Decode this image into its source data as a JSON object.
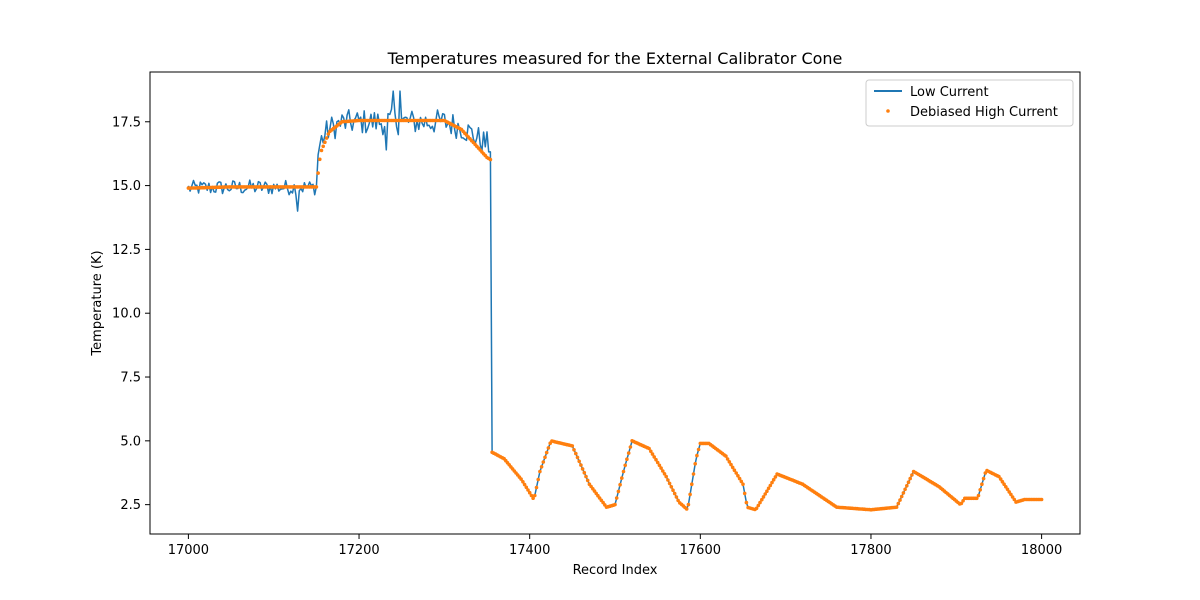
{
  "chart_data": {
    "type": "line",
    "title": "Temperatures measured for the External Calibrator Cone",
    "xlabel": "Record Index",
    "ylabel": "Temperature (K)",
    "xlim": [
      16955,
      18045
    ],
    "ylim": [
      1.35,
      19.45
    ],
    "xticks": [
      17000,
      17200,
      17400,
      17600,
      17800,
      18000
    ],
    "yticks": [
      2.5,
      5.0,
      7.5,
      10.0,
      12.5,
      15.0,
      17.5
    ],
    "grid": false,
    "legend_position": "top-right",
    "series": [
      {
        "name": "Low Current",
        "style": "line",
        "color": "#1f77b4",
        "segments": [
          {
            "x_start": 17000,
            "x_end": 17150,
            "mean": 14.9,
            "jitter": 0.3
          },
          {
            "x_start": 17151,
            "x_end": 17355,
            "mean": 17.4,
            "jitter": 0.5
          },
          {
            "x_start": 17356,
            "x_end": 18000,
            "mean": null,
            "jitter": 0
          }
        ],
        "spikes": [
          {
            "x": 17240,
            "y": 18.7
          },
          {
            "x": 17248,
            "y": 18.7
          },
          {
            "x": 17128,
            "y": 14.0
          },
          {
            "x": 17232,
            "y": 16.4
          }
        ]
      },
      {
        "name": "Debiased High Current",
        "style": "scatter",
        "color": "#ff7f0e",
        "x": [
          17000,
          17050,
          17100,
          17150,
          17155,
          17165,
          17180,
          17200,
          17250,
          17300,
          17320,
          17350,
          17355,
          17356,
          17370,
          17390,
          17405,
          17412,
          17425,
          17450,
          17470,
          17490,
          17500,
          17510,
          17520,
          17540,
          17560,
          17575,
          17585,
          17595,
          17600,
          17610,
          17630,
          17650,
          17655,
          17665,
          17690,
          17720,
          17760,
          17780,
          17800,
          17830,
          17850,
          17880,
          17905,
          17910,
          17925,
          17935,
          17950,
          17970,
          17980,
          18000
        ],
        "y": [
          14.9,
          14.95,
          14.95,
          14.95,
          16.3,
          17.1,
          17.5,
          17.55,
          17.55,
          17.55,
          17.2,
          16.1,
          16.0,
          4.55,
          4.3,
          3.5,
          2.7,
          3.8,
          5.0,
          4.8,
          3.3,
          2.4,
          2.5,
          3.8,
          5.0,
          4.7,
          3.6,
          2.6,
          2.3,
          4.3,
          4.9,
          4.9,
          4.4,
          3.3,
          2.4,
          2.3,
          3.7,
          3.3,
          2.4,
          2.35,
          2.3,
          2.4,
          3.8,
          3.2,
          2.5,
          2.75,
          2.75,
          3.85,
          3.6,
          2.6,
          2.7,
          2.7
        ]
      }
    ]
  }
}
